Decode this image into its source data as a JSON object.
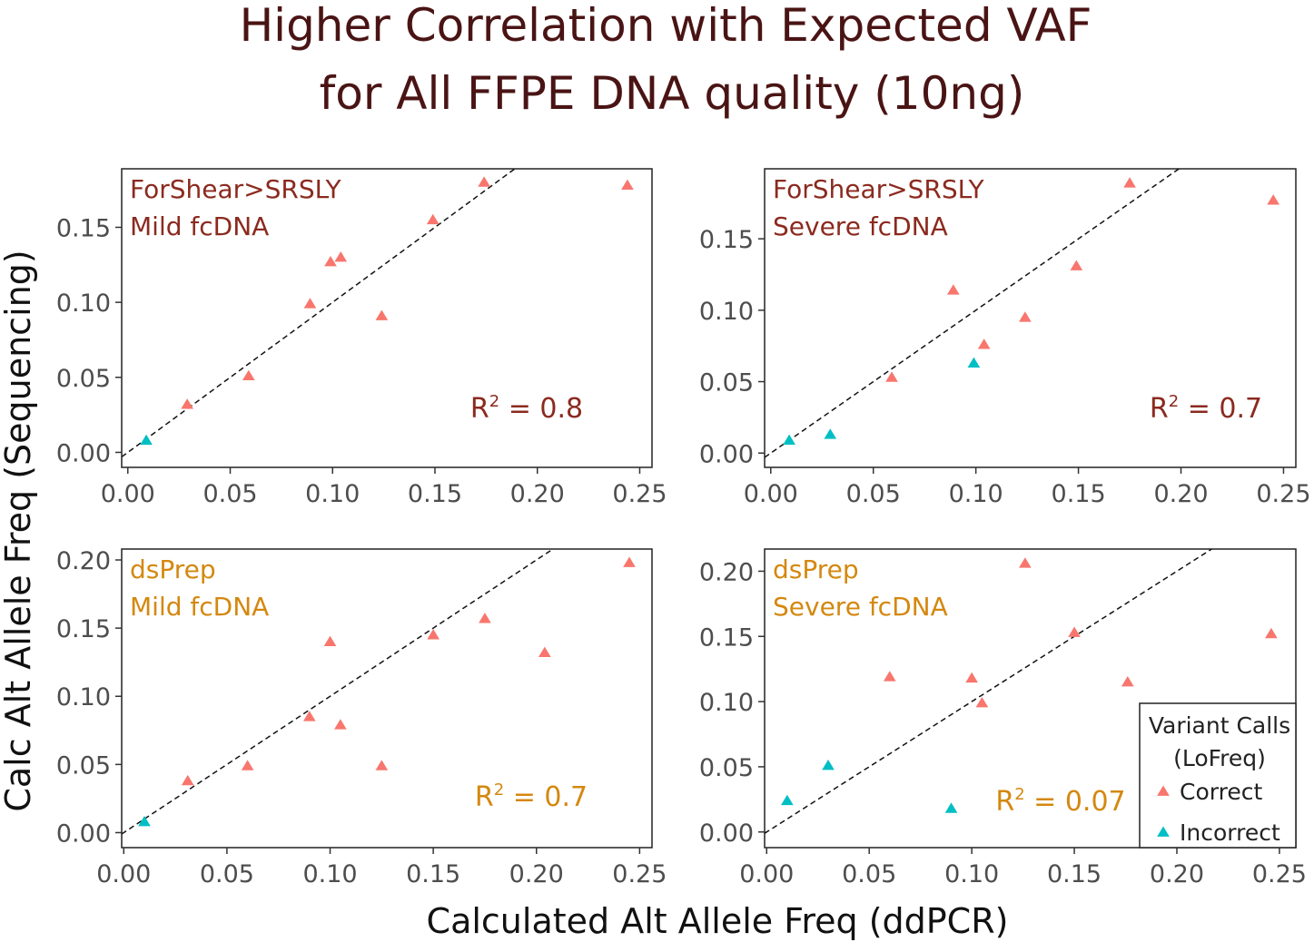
{
  "title_lines": [
    "Higher Correlation with Expected VAF",
    "for All FFPE DNA quality (10ng)"
  ],
  "colors": {
    "correct": "#F8766D",
    "incorrect": "#00BFC4",
    "forshear_label": "#8B2A1F",
    "dsprep_label": "#D4880F",
    "title": "#4a1414"
  },
  "chart_data": [
    {
      "type": "scatter",
      "panel_label": [
        "ForShear>SRSLY",
        "Mild fcDNA"
      ],
      "label_group": "forshear",
      "annotation": {
        "prefix": "R",
        "sup": "2",
        "suffix": " = 0.8"
      },
      "xlim": [
        -0.003,
        0.256
      ],
      "ylim": [
        -0.01,
        0.189
      ],
      "xticks": [
        "0.00",
        "0.05",
        "0.10",
        "0.15",
        "0.20",
        "0.25"
      ],
      "yticks": [
        "0.00",
        "0.05",
        "0.10",
        "0.15"
      ],
      "reference_line": "y = x (dashed)",
      "points": [
        {
          "x": 0.009,
          "y": 0.008,
          "call": "Incorrect"
        },
        {
          "x": 0.029,
          "y": 0.032,
          "call": "Correct"
        },
        {
          "x": 0.059,
          "y": 0.051,
          "call": "Correct"
        },
        {
          "x": 0.089,
          "y": 0.099,
          "call": "Correct"
        },
        {
          "x": 0.099,
          "y": 0.127,
          "call": "Correct"
        },
        {
          "x": 0.104,
          "y": 0.13,
          "call": "Correct"
        },
        {
          "x": 0.124,
          "y": 0.091,
          "call": "Correct"
        },
        {
          "x": 0.149,
          "y": 0.155,
          "call": "Correct"
        },
        {
          "x": 0.174,
          "y": 0.18,
          "call": "Correct"
        },
        {
          "x": 0.244,
          "y": 0.178,
          "call": "Correct"
        }
      ]
    },
    {
      "type": "scatter",
      "panel_label": [
        "ForShear>SRSLY",
        "Severe fcDNA"
      ],
      "label_group": "forshear",
      "annotation": {
        "prefix": "R",
        "sup": "2",
        "suffix": " = 0.7"
      },
      "xlim": [
        -0.003,
        0.256
      ],
      "ylim": [
        -0.01,
        0.199
      ],
      "xticks": [
        "0.00",
        "0.05",
        "0.10",
        "0.15",
        "0.20",
        "0.25"
      ],
      "yticks": [
        "0.00",
        "0.05",
        "0.10",
        "0.15"
      ],
      "reference_line": "y = x (dashed)",
      "points": [
        {
          "x": 0.009,
          "y": 0.009,
          "call": "Incorrect"
        },
        {
          "x": 0.029,
          "y": 0.013,
          "call": "Incorrect"
        },
        {
          "x": 0.059,
          "y": 0.053,
          "call": "Correct"
        },
        {
          "x": 0.089,
          "y": 0.114,
          "call": "Correct"
        },
        {
          "x": 0.099,
          "y": 0.063,
          "call": "Incorrect"
        },
        {
          "x": 0.104,
          "y": 0.076,
          "call": "Correct"
        },
        {
          "x": 0.124,
          "y": 0.095,
          "call": "Correct"
        },
        {
          "x": 0.149,
          "y": 0.131,
          "call": "Correct"
        },
        {
          "x": 0.175,
          "y": 0.189,
          "call": "Correct"
        },
        {
          "x": 0.245,
          "y": 0.177,
          "call": "Correct"
        }
      ]
    },
    {
      "type": "scatter",
      "panel_label": [
        "dsPrep",
        "Mild fcDNA"
      ],
      "label_group": "dsprep",
      "annotation": {
        "prefix": "R",
        "sup": "2",
        "suffix": " = 0.7"
      },
      "xlim": [
        -0.001,
        0.256
      ],
      "ylim": [
        -0.011,
        0.208
      ],
      "xticks": [
        "0.00",
        "0.05",
        "0.10",
        "0.15",
        "0.20",
        "0.25"
      ],
      "yticks": [
        "0.00",
        "0.05",
        "0.10",
        "0.15",
        "0.20"
      ],
      "reference_line": "y = x (dashed)",
      "points": [
        {
          "x": 0.01,
          "y": 0.008,
          "call": "Incorrect"
        },
        {
          "x": 0.031,
          "y": 0.038,
          "call": "Correct"
        },
        {
          "x": 0.06,
          "y": 0.049,
          "call": "Correct"
        },
        {
          "x": 0.09,
          "y": 0.085,
          "call": "Correct"
        },
        {
          "x": 0.1,
          "y": 0.14,
          "call": "Correct"
        },
        {
          "x": 0.105,
          "y": 0.079,
          "call": "Correct"
        },
        {
          "x": 0.125,
          "y": 0.049,
          "call": "Correct"
        },
        {
          "x": 0.15,
          "y": 0.145,
          "call": "Correct"
        },
        {
          "x": 0.175,
          "y": 0.157,
          "call": "Correct"
        },
        {
          "x": 0.204,
          "y": 0.132,
          "call": "Correct"
        },
        {
          "x": 0.245,
          "y": 0.198,
          "call": "Correct"
        }
      ]
    },
    {
      "type": "scatter",
      "panel_label": [
        "dsPrep",
        "Severe fcDNA"
      ],
      "label_group": "dsprep",
      "annotation": {
        "prefix": "R",
        "sup": "2",
        "suffix": " = 0.07"
      },
      "xlim": [
        -0.001,
        0.258
      ],
      "ylim": [
        -0.012,
        0.217
      ],
      "xticks": [
        "0.00",
        "0.05",
        "0.10",
        "0.15",
        "0.20",
        "0.25"
      ],
      "yticks": [
        "0.00",
        "0.05",
        "0.10",
        "0.15",
        "0.20"
      ],
      "reference_line": "y = x (dashed)",
      "points": [
        {
          "x": 0.01,
          "y": 0.024,
          "call": "Incorrect"
        },
        {
          "x": 0.03,
          "y": 0.051,
          "call": "Incorrect"
        },
        {
          "x": 0.06,
          "y": 0.119,
          "call": "Correct"
        },
        {
          "x": 0.09,
          "y": 0.018,
          "call": "Incorrect"
        },
        {
          "x": 0.1,
          "y": 0.118,
          "call": "Correct"
        },
        {
          "x": 0.105,
          "y": 0.099,
          "call": "Correct"
        },
        {
          "x": 0.126,
          "y": 0.206,
          "call": "Correct"
        },
        {
          "x": 0.15,
          "y": 0.153,
          "call": "Correct"
        },
        {
          "x": 0.176,
          "y": 0.115,
          "call": "Correct"
        },
        {
          "x": 0.246,
          "y": 0.152,
          "call": "Correct"
        }
      ]
    }
  ],
  "xlabel": "Calculated Alt Allele Freq (ddPCR)",
  "ylabel": "Calc Alt Allele Freq (Sequencing)",
  "legend": {
    "title_lines": [
      "Variant Calls",
      "(LoFreq)"
    ],
    "entries": [
      "Correct",
      "Incorrect"
    ],
    "placement": "bottom-right of last panel"
  }
}
